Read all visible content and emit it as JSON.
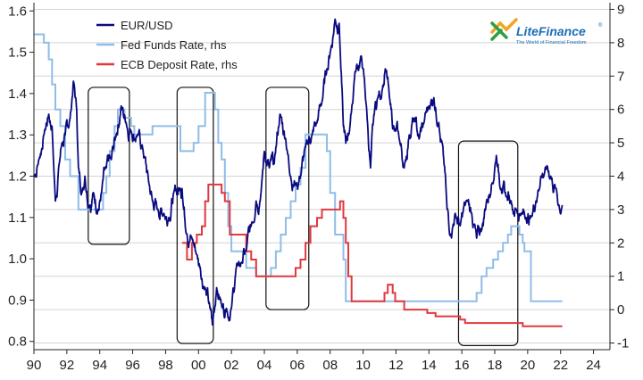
{
  "logo": {
    "name": "LiteFinance",
    "registered": "®",
    "tagline": "The World of Financial Freedom"
  },
  "chart_data": {
    "type": "line",
    "x_range": [
      1990,
      2025
    ],
    "x_ticks": [
      "90",
      "92",
      "94",
      "96",
      "98",
      "00",
      "02",
      "04",
      "06",
      "08",
      "10",
      "12",
      "14",
      "16",
      "18",
      "20",
      "22",
      "24"
    ],
    "y_left": {
      "range": [
        0.78,
        1.62
      ],
      "ticks": [
        "0.8",
        "0.9",
        "1.0",
        "1.1",
        "1.2",
        "1.3",
        "1.4",
        "1.5",
        "1.6"
      ]
    },
    "y_right": {
      "range": [
        -1.2,
        9.2
      ],
      "ticks": [
        "-1",
        "0",
        "1",
        "2",
        "3",
        "4",
        "5",
        "6",
        "7",
        "8",
        "9"
      ]
    },
    "grid": "horizontal, from right axis ticks",
    "legend_position": "top-left",
    "colors": {
      "eurusd": "#0a0a80",
      "fed": "#8fbde8",
      "ecb": "#e0393e",
      "box": "#111111"
    },
    "series": [
      {
        "name": "EUR/USD",
        "axis": "left",
        "x": [
          1990.0,
          1990.3,
          1990.6,
          1990.9,
          1991.1,
          1991.3,
          1991.5,
          1991.7,
          1991.9,
          1992.2,
          1992.4,
          1992.6,
          1992.7,
          1992.9,
          1993.1,
          1993.4,
          1993.6,
          1993.9,
          1994.1,
          1994.4,
          1994.7,
          1995.0,
          1995.3,
          1995.6,
          1995.9,
          1996.3,
          1996.6,
          1997.0,
          1997.2,
          1997.5,
          1997.9,
          1998.2,
          1998.5,
          1998.9,
          1999.0,
          1999.3,
          1999.6,
          1999.9,
          2000.1,
          2000.4,
          2000.7,
          2000.85,
          2001.1,
          2001.4,
          2001.7,
          2002.0,
          2002.3,
          2002.6,
          2002.9,
          2003.2,
          2003.5,
          2003.8,
          2004.0,
          2004.3,
          2004.6,
          2004.95,
          2005.3,
          2005.6,
          2005.9,
          2006.2,
          2006.5,
          2006.9,
          2007.2,
          2007.5,
          2007.8,
          2008.0,
          2008.3,
          2008.55,
          2008.8,
          2008.95,
          2009.2,
          2009.5,
          2009.9,
          2010.2,
          2010.45,
          2010.7,
          2010.9,
          2011.2,
          2011.35,
          2011.6,
          2011.9,
          2012.2,
          2012.5,
          2012.8,
          2013.1,
          2013.4,
          2013.7,
          2014.0,
          2014.3,
          2014.6,
          2014.9,
          2015.1,
          2015.3,
          2015.6,
          2015.9,
          2016.3,
          2016.6,
          2016.9,
          2017.2,
          2017.5,
          2017.8,
          2018.1,
          2018.4,
          2018.7,
          2019.0,
          2019.3,
          2019.6,
          2019.9,
          2020.2,
          2020.5,
          2020.8,
          2021.1,
          2021.4,
          2021.7,
          2021.9,
          2022.1
        ],
        "values": [
          1.2,
          1.24,
          1.3,
          1.35,
          1.32,
          1.14,
          1.22,
          1.28,
          1.3,
          1.34,
          1.43,
          1.36,
          1.22,
          1.16,
          1.2,
          1.13,
          1.16,
          1.12,
          1.16,
          1.22,
          1.24,
          1.3,
          1.37,
          1.33,
          1.31,
          1.3,
          1.27,
          1.18,
          1.14,
          1.12,
          1.11,
          1.1,
          1.16,
          1.17,
          1.17,
          1.06,
          1.05,
          1.01,
          0.98,
          0.93,
          0.88,
          0.84,
          0.93,
          0.89,
          0.88,
          0.88,
          0.98,
          0.99,
          1.02,
          1.08,
          1.14,
          1.16,
          1.26,
          1.22,
          1.23,
          1.35,
          1.29,
          1.2,
          1.18,
          1.2,
          1.27,
          1.3,
          1.33,
          1.38,
          1.46,
          1.5,
          1.58,
          1.57,
          1.32,
          1.28,
          1.32,
          1.45,
          1.49,
          1.37,
          1.22,
          1.36,
          1.39,
          1.42,
          1.46,
          1.39,
          1.31,
          1.29,
          1.22,
          1.3,
          1.34,
          1.29,
          1.33,
          1.37,
          1.39,
          1.33,
          1.24,
          1.12,
          1.06,
          1.11,
          1.08,
          1.14,
          1.11,
          1.05,
          1.07,
          1.14,
          1.18,
          1.25,
          1.17,
          1.15,
          1.14,
          1.12,
          1.11,
          1.1,
          1.1,
          1.14,
          1.2,
          1.22,
          1.2,
          1.17,
          1.13,
          1.13
        ]
      },
      {
        "name": "Fed Funds Rate, rhs",
        "axis": "right",
        "x": [
          1990.0,
          1990.6,
          1990.9,
          1991.1,
          1991.3,
          1991.6,
          1991.9,
          1992.2,
          1992.7,
          1993.0,
          1994.0,
          1994.2,
          1994.4,
          1994.6,
          1994.9,
          1995.1,
          1995.5,
          1995.9,
          1996.1,
          1997.2,
          1998.7,
          1998.9,
          1999.4,
          1999.7,
          2000.0,
          2000.4,
          2001.0,
          2001.2,
          2001.4,
          2001.6,
          2001.8,
          2002.0,
          2002.9,
          2003.5,
          2004.4,
          2004.7,
          2005.0,
          2005.3,
          2005.6,
          2005.9,
          2006.2,
          2006.5,
          2007.6,
          2007.8,
          2008.0,
          2008.3,
          2008.8,
          2008.95,
          2015.9,
          2016.9,
          2017.2,
          2017.5,
          2017.9,
          2018.2,
          2018.5,
          2018.8,
          2019.0,
          2019.5,
          2019.7,
          2019.8,
          2020.2,
          2022.1
        ],
        "values": [
          8.25,
          8.0,
          7.5,
          6.75,
          6.0,
          5.5,
          4.5,
          4.0,
          3.0,
          3.0,
          3.0,
          3.5,
          4.0,
          4.75,
          5.5,
          6.0,
          5.75,
          5.5,
          5.25,
          5.5,
          5.5,
          4.75,
          4.75,
          5.0,
          5.5,
          6.5,
          6.0,
          5.0,
          4.5,
          3.5,
          2.5,
          1.75,
          1.25,
          1.0,
          1.25,
          1.75,
          2.25,
          2.75,
          3.25,
          3.75,
          4.25,
          5.25,
          5.25,
          4.75,
          3.5,
          2.25,
          1.5,
          0.25,
          0.25,
          0.5,
          1.0,
          1.25,
          1.5,
          1.75,
          2.0,
          2.25,
          2.5,
          2.25,
          2.0,
          1.75,
          0.25,
          0.25
        ]
      },
      {
        "name": "ECB Deposit Rate, rhs",
        "axis": "right",
        "x": [
          1999.0,
          1999.3,
          1999.6,
          1999.9,
          2000.2,
          2000.4,
          2000.6,
          2000.9,
          2001.4,
          2001.6,
          2001.9,
          2002.9,
          2003.2,
          2003.5,
          2005.9,
          2006.2,
          2006.5,
          2006.8,
          2007.2,
          2007.5,
          2008.6,
          2008.8,
          2008.95,
          2009.1,
          2009.3,
          2011.3,
          2011.5,
          2011.8,
          2011.95,
          2012.5,
          2013.3,
          2013.9,
          2014.4,
          2014.7,
          2015.9,
          2016.2,
          2019.7,
          2022.1
        ],
        "values": [
          2.0,
          1.5,
          2.0,
          2.25,
          2.5,
          3.25,
          3.75,
          3.75,
          3.5,
          3.25,
          2.25,
          1.75,
          1.5,
          1.0,
          1.25,
          1.5,
          2.0,
          2.5,
          2.75,
          3.0,
          3.25,
          2.75,
          2.0,
          1.0,
          0.25,
          0.5,
          0.75,
          0.5,
          0.25,
          0.0,
          0.0,
          -0.1,
          -0.2,
          -0.2,
          -0.3,
          -0.4,
          -0.5,
          -0.5
        ]
      }
    ],
    "highlight_periods": [
      [
        1993.3,
        1995.8
      ],
      [
        1998.7,
        2000.9
      ],
      [
        2004.1,
        2006.7
      ],
      [
        2015.8,
        2019.4
      ]
    ]
  }
}
